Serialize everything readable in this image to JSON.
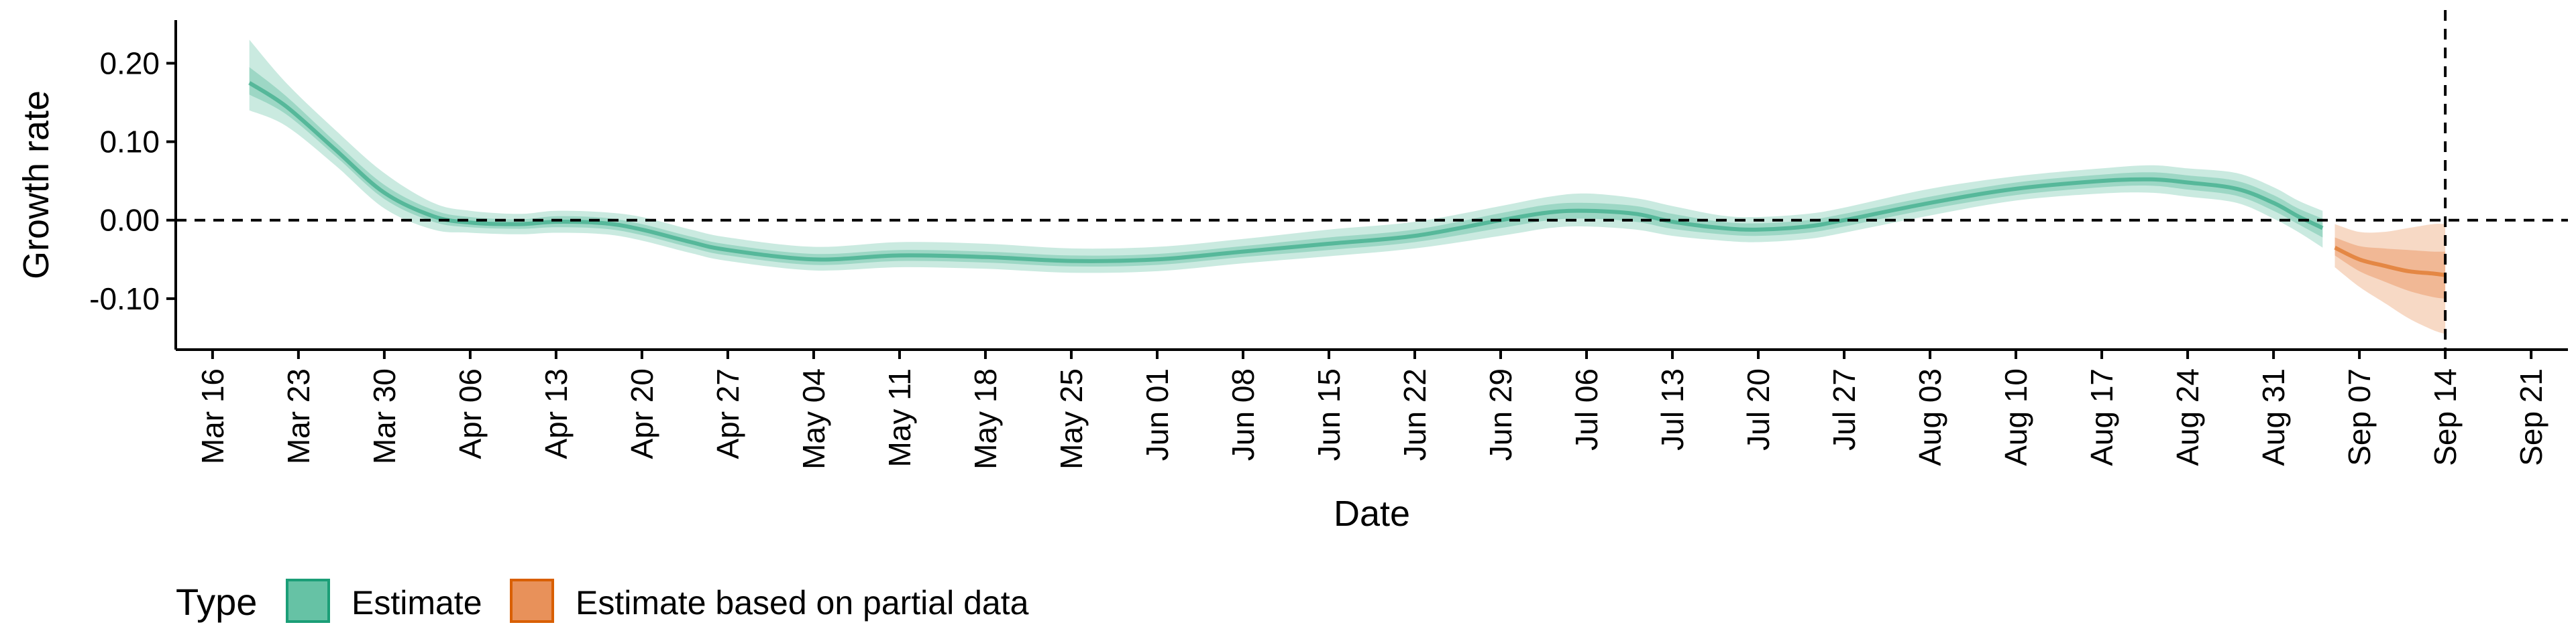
{
  "chart_data": {
    "type": "area",
    "xlabel": "Date",
    "ylabel": "Growth rate",
    "x_ticks": [
      "2020-03-16",
      "2020-03-23",
      "2020-03-30",
      "2020-04-06",
      "2020-04-13",
      "2020-04-20",
      "2020-04-27",
      "2020-05-04",
      "2020-05-11",
      "2020-05-18",
      "2020-05-25",
      "2020-06-01",
      "2020-06-08",
      "2020-06-15",
      "2020-06-22",
      "2020-06-29",
      "2020-07-06",
      "2020-07-13",
      "2020-07-20",
      "2020-07-27",
      "2020-08-03",
      "2020-08-10",
      "2020-08-17",
      "2020-08-24",
      "2020-08-31",
      "2020-09-07",
      "2020-09-14",
      "2020-09-21"
    ],
    "x_tick_labels": [
      "Mar 16",
      "Mar 23",
      "Mar 30",
      "Apr 06",
      "Apr 13",
      "Apr 20",
      "Apr 27",
      "May 04",
      "May 11",
      "May 18",
      "May 25",
      "Jun 01",
      "Jun 08",
      "Jun 15",
      "Jun 22",
      "Jun 29",
      "Jul 06",
      "Jul 13",
      "Jul 20",
      "Jul 27",
      "Aug 03",
      "Aug 10",
      "Aug 17",
      "Aug 24",
      "Aug 31",
      "Sep 07",
      "Sep 14",
      "Sep 21"
    ],
    "xlim": [
      "2020-03-13",
      "2020-09-24"
    ],
    "ylim": [
      -0.165,
      0.255
    ],
    "y_ticks": [
      0.2,
      0.1,
      0.0,
      -0.1
    ],
    "y_tick_labels": [
      "0.20",
      "0.10",
      "0.00",
      "-0.10"
    ],
    "hline_y": 0.0,
    "vline_x": "2020-09-14",
    "grid": false,
    "legend": {
      "title": "Type",
      "position": "bottom-left",
      "items": [
        {
          "label": "Estimate",
          "fill": "#66c2a5",
          "stroke": "#1b9e77"
        },
        {
          "label": "Estimate based on partial data",
          "fill": "#e8915a",
          "stroke": "#d95f02"
        }
      ]
    },
    "series": [
      {
        "name": "Estimate",
        "color": "#1b9e77",
        "x": [
          "2020-03-19",
          "2020-03-22",
          "2020-03-26",
          "2020-03-30",
          "2020-04-03",
          "2020-04-06",
          "2020-04-10",
          "2020-04-13",
          "2020-04-17",
          "2020-04-20",
          "2020-04-24",
          "2020-04-27",
          "2020-05-04",
          "2020-05-11",
          "2020-05-18",
          "2020-05-25",
          "2020-06-01",
          "2020-06-08",
          "2020-06-15",
          "2020-06-22",
          "2020-06-29",
          "2020-07-03",
          "2020-07-06",
          "2020-07-10",
          "2020-07-13",
          "2020-07-17",
          "2020-07-20",
          "2020-07-24",
          "2020-07-27",
          "2020-08-03",
          "2020-08-10",
          "2020-08-17",
          "2020-08-21",
          "2020-08-24",
          "2020-08-28",
          "2020-08-31",
          "2020-09-02",
          "2020-09-04"
        ],
        "y": [
          0.175,
          0.145,
          0.09,
          0.035,
          0.005,
          -0.003,
          -0.005,
          -0.002,
          -0.004,
          -0.012,
          -0.028,
          -0.038,
          -0.05,
          -0.045,
          -0.047,
          -0.052,
          -0.05,
          -0.04,
          -0.03,
          -0.02,
          0.0,
          0.01,
          0.012,
          0.008,
          -0.002,
          -0.01,
          -0.012,
          -0.008,
          0.0,
          0.022,
          0.04,
          0.05,
          0.052,
          0.048,
          0.04,
          0.022,
          0.005,
          -0.01
        ],
        "lo90": [
          0.14,
          0.12,
          0.07,
          0.015,
          -0.012,
          -0.016,
          -0.018,
          -0.016,
          -0.018,
          -0.026,
          -0.042,
          -0.052,
          -0.064,
          -0.06,
          -0.062,
          -0.067,
          -0.065,
          -0.055,
          -0.046,
          -0.036,
          -0.02,
          -0.01,
          -0.008,
          -0.012,
          -0.02,
          -0.026,
          -0.028,
          -0.024,
          -0.016,
          0.006,
          0.025,
          0.034,
          0.035,
          0.03,
          0.022,
          0.002,
          -0.015,
          -0.035
        ],
        "hi90": [
          0.23,
          0.175,
          0.115,
          0.06,
          0.022,
          0.012,
          0.008,
          0.012,
          0.01,
          0.004,
          -0.012,
          -0.022,
          -0.034,
          -0.028,
          -0.03,
          -0.036,
          -0.034,
          -0.024,
          -0.012,
          -0.002,
          0.018,
          0.03,
          0.034,
          0.028,
          0.018,
          0.006,
          0.004,
          0.008,
          0.016,
          0.04,
          0.056,
          0.066,
          0.07,
          0.066,
          0.06,
          0.042,
          0.025,
          0.012
        ],
        "lo50": [
          0.16,
          0.135,
          0.082,
          0.027,
          -0.002,
          -0.009,
          -0.011,
          -0.009,
          -0.011,
          -0.019,
          -0.035,
          -0.045,
          -0.057,
          -0.052,
          -0.054,
          -0.059,
          -0.057,
          -0.047,
          -0.038,
          -0.028,
          -0.01,
          0.0,
          0.002,
          -0.002,
          -0.011,
          -0.018,
          -0.02,
          -0.016,
          -0.008,
          0.014,
          0.032,
          0.042,
          0.044,
          0.039,
          0.031,
          0.012,
          -0.005,
          -0.022
        ],
        "hi50": [
          0.195,
          0.158,
          0.1,
          0.045,
          0.013,
          0.004,
          0.001,
          0.005,
          0.003,
          -0.005,
          -0.021,
          -0.031,
          -0.043,
          -0.038,
          -0.04,
          -0.045,
          -0.043,
          -0.033,
          -0.022,
          -0.012,
          0.009,
          0.02,
          0.022,
          0.018,
          0.008,
          -0.002,
          -0.004,
          0.0,
          0.008,
          0.03,
          0.048,
          0.058,
          0.061,
          0.057,
          0.05,
          0.032,
          0.015,
          0.002
        ]
      },
      {
        "name": "Estimate based on partial data",
        "color": "#d95f02",
        "x": [
          "2020-09-05",
          "2020-09-07",
          "2020-09-09",
          "2020-09-11",
          "2020-09-13",
          "2020-09-14"
        ],
        "y": [
          -0.035,
          -0.05,
          -0.058,
          -0.065,
          -0.068,
          -0.07
        ],
        "lo90": [
          -0.06,
          -0.085,
          -0.105,
          -0.125,
          -0.14,
          -0.145
        ],
        "hi90": [
          -0.005,
          -0.015,
          -0.015,
          -0.01,
          -0.005,
          -0.005
        ],
        "lo50": [
          -0.045,
          -0.065,
          -0.078,
          -0.09,
          -0.098,
          -0.1
        ],
        "hi50": [
          -0.022,
          -0.033,
          -0.036,
          -0.038,
          -0.04,
          -0.04
        ]
      }
    ]
  }
}
